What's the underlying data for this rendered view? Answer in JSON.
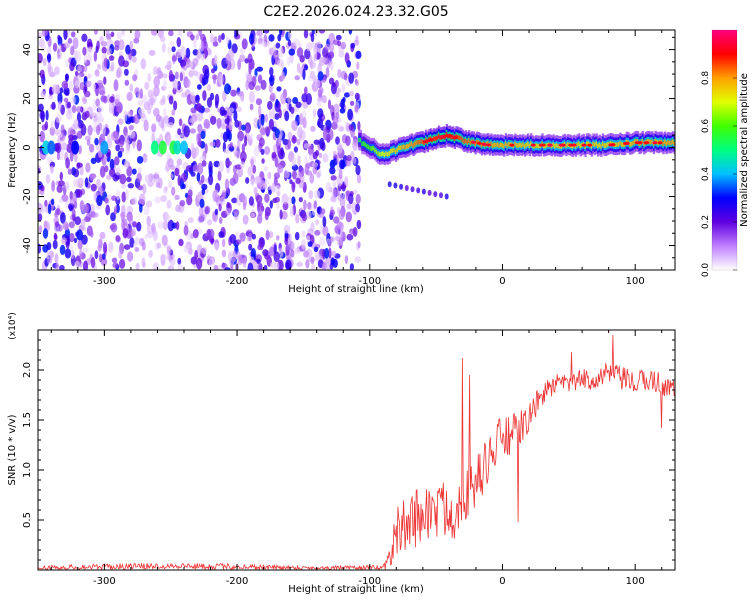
{
  "title": "C2E2.2026.024.23.32.G05",
  "chart_data": [
    {
      "type": "heatmap",
      "name": "spectrogram",
      "title": "C2E2.2026.024.23.32.G05",
      "xlabel": "Height of straight line (km)",
      "ylabel": "Frequency (Hz)",
      "xlim": [
        -350,
        130
      ],
      "ylim": [
        -50,
        48
      ],
      "xticks": [
        -300,
        -200,
        -100,
        0,
        100
      ],
      "yticks": [
        -40,
        -20,
        0,
        20,
        40
      ],
      "colorbar": {
        "label": "Normalized spectral amplitude",
        "range": [
          0,
          1
        ],
        "ticks": [
          "0.0",
          "0.2",
          "0.4",
          "0.6",
          "0.8"
        ],
        "tick_values": [
          0.0,
          0.2,
          0.4,
          0.6,
          0.8
        ],
        "colors": [
          "#ffffff",
          "#c080ff",
          "#6000e0",
          "#0000ff",
          "#00c0ff",
          "#00ff80",
          "#40ff00",
          "#e0ff00",
          "#ffa000",
          "#ff0000",
          "#ff0080"
        ]
      },
      "regions": {
        "noise_band": [
          -350,
          -108
        ],
        "noise_gap": [
          -272,
          -250
        ],
        "signal_start": -108,
        "tail_feature": {
          "x": [
            -85,
            -42
          ],
          "y": [
            -15,
            -20
          ]
        }
      },
      "signal_ridge": {
        "x": [
          -108,
          -100,
          -90,
          -80,
          -70,
          -60,
          -50,
          -40,
          -30,
          -20,
          -10,
          0,
          20,
          40,
          60,
          80,
          100,
          120,
          130
        ],
        "freq": [
          3,
          0,
          -3,
          -1,
          1,
          2,
          4,
          5,
          3,
          2,
          1,
          1,
          1,
          1,
          1,
          1,
          2,
          2,
          2
        ],
        "amplitude": [
          0.55,
          0.6,
          0.7,
          0.75,
          0.8,
          0.85,
          0.88,
          0.9,
          0.85,
          0.82,
          0.8,
          0.78,
          0.75,
          0.75,
          0.75,
          0.75,
          0.78,
          0.8,
          0.8
        ]
      }
    },
    {
      "type": "line",
      "name": "snr",
      "xlabel": "Height of straight line (km)",
      "ylabel": "SNR (10 * v/v)",
      "exponent_label": "(x10⁴)",
      "xlim": [
        -350,
        130
      ],
      "ylim": [
        0,
        2.4
      ],
      "xticks": [
        -300,
        -200,
        -100,
        0,
        100
      ],
      "yticks": [
        "0.5",
        "1.0",
        "1.5",
        "2.0"
      ],
      "ytick_values": [
        0.5,
        1.0,
        1.5,
        2.0
      ],
      "color": "#ee3333",
      "x": [
        -350,
        -300,
        -250,
        -200,
        -150,
        -110,
        -90,
        -85,
        -80,
        -70,
        -60,
        -50,
        -40,
        -35,
        -30,
        -25,
        -20,
        -10,
        0,
        10,
        20,
        30,
        40,
        50,
        60,
        70,
        80,
        90,
        100,
        110,
        120,
        130
      ],
      "y": [
        0.02,
        0.03,
        0.04,
        0.03,
        0.02,
        0.02,
        0.02,
        0.1,
        0.35,
        0.45,
        0.55,
        0.55,
        0.6,
        0.5,
        0.8,
        0.7,
        0.85,
        1.1,
        1.3,
        1.35,
        1.5,
        1.75,
        1.85,
        1.85,
        1.9,
        1.9,
        1.95,
        1.9,
        1.85,
        1.9,
        1.85,
        1.8
      ],
      "noise": [
        0.02,
        0.03,
        0.03,
        0.03,
        0.02,
        0.02,
        0.03,
        0.12,
        0.25,
        0.3,
        0.3,
        0.28,
        0.3,
        0.25,
        0.3,
        0.3,
        0.25,
        0.25,
        0.25,
        0.2,
        0.15,
        0.12,
        0.1,
        0.1,
        0.1,
        0.12,
        0.12,
        0.12,
        0.12,
        0.12,
        0.12,
        0.1
      ],
      "spikes": [
        {
          "x": -30,
          "y": 2.12
        },
        {
          "x": -25,
          "y": 1.95
        },
        {
          "x": 12,
          "y": 0.48
        },
        {
          "x": 83,
          "y": 2.35
        },
        {
          "x": 52,
          "y": 2.18
        },
        {
          "x": 120,
          "y": 1.42
        }
      ]
    }
  ]
}
